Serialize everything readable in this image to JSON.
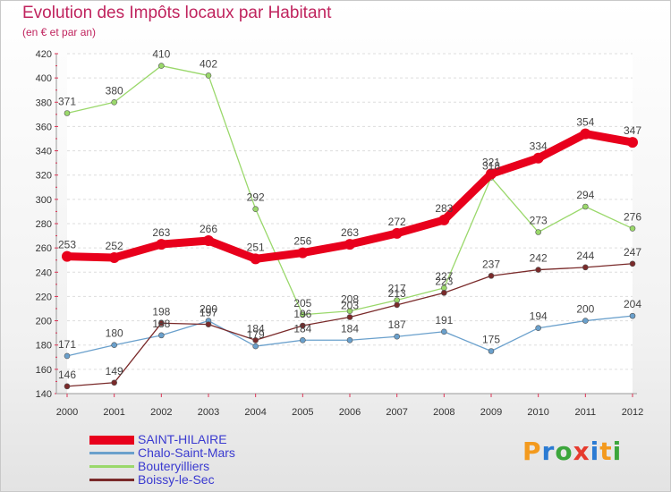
{
  "title": "Evolution des Impôts locaux par Habitant",
  "subtitle": "(en € et par an)",
  "brand": {
    "text": "Proxiti",
    "colors": [
      "#f39a1e",
      "#2b7bd3",
      "#3ca63c",
      "#e63b2e",
      "#2b7bd3",
      "#f39a1e",
      "#3ca63c"
    ]
  },
  "chart_data": {
    "type": "line",
    "x": [
      "2000",
      "2001",
      "2002",
      "2003",
      "2004",
      "2005",
      "2006",
      "2007",
      "2008",
      "2009",
      "2010",
      "2011",
      "2012"
    ],
    "ylim": [
      140,
      420
    ],
    "yticks": [
      140,
      160,
      180,
      200,
      220,
      240,
      260,
      280,
      300,
      320,
      340,
      360,
      380,
      400,
      420
    ],
    "grid": "horizontal",
    "legend_position": "bottom-left",
    "series": [
      {
        "name": "SAINT-HILAIRE",
        "color": "#e8001c",
        "width": 9,
        "values": [
          253,
          252,
          263,
          266,
          251,
          256,
          263,
          272,
          283,
          321,
          334,
          354,
          347
        ],
        "labels": [
          "253",
          "252",
          "263",
          "266",
          "251",
          "256",
          "263",
          "272",
          "283",
          "321",
          "334",
          "354",
          "347"
        ]
      },
      {
        "name": "Chalo-Saint-Mars",
        "color": "#6aa0cc",
        "width": 1.3,
        "values": [
          171,
          180,
          188,
          200,
          179,
          184,
          184,
          187,
          191,
          175,
          194,
          200,
          204
        ],
        "labels": [
          "171",
          "180",
          "188",
          "200",
          "179",
          "184",
          "184",
          "187",
          "191",
          "175",
          "194",
          "200",
          "204"
        ]
      },
      {
        "name": "Bouteryilliers",
        "color": "#9ad86b",
        "width": 1.3,
        "values": [
          371,
          380,
          410,
          402,
          292,
          205,
          208,
          217,
          227,
          318,
          273,
          294,
          276
        ],
        "labels": [
          "371",
          "380",
          "410",
          "402",
          "292",
          "205",
          "208",
          "217",
          "227",
          "318",
          "273",
          "294",
          "276"
        ]
      },
      {
        "name": "Boissy-le-Sec",
        "color": "#7a2a2a",
        "width": 1.3,
        "values": [
          146,
          149,
          198,
          197,
          184,
          196,
          203,
          213,
          223,
          237,
          242,
          244,
          247
        ],
        "labels": [
          "146",
          "149",
          "198",
          "197",
          "184",
          "196",
          "203",
          "213",
          "223",
          "237",
          "242",
          "244",
          "247"
        ]
      }
    ]
  }
}
